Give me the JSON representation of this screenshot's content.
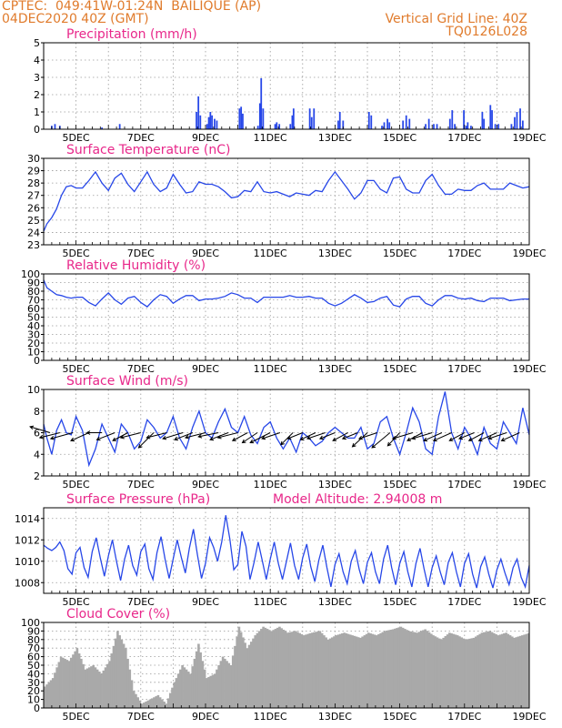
{
  "header": {
    "left_line1": "CPTEC:  049:41W-01:24N  BAILIQUE (AP)",
    "left_line2": "04DEC2020 40Z (GMT)",
    "right_line1": "Vertical Grid Line: 40Z",
    "right_line2": "TQ0126L028"
  },
  "colors": {
    "header": "#e07b2c",
    "title": "#e8278a",
    "series": "#2747e8",
    "cloud": "#a9a9a9",
    "grid": "#9a9a9a"
  },
  "x_ticks": [
    "5DEC",
    "7DEC",
    "9DEC",
    "11DEC",
    "13DEC",
    "15DEC",
    "17DEC",
    "19DEC"
  ],
  "chart_data": [
    {
      "id": "precip",
      "type": "bar",
      "title": "Precipitation (mm/h)",
      "xlim": [
        4.0,
        19.0
      ],
      "ylim": [
        0,
        5
      ],
      "yticks": [
        0,
        1,
        2,
        3,
        4,
        5
      ],
      "bar_width": 0.05,
      "x": [
        4.25,
        4.35,
        4.5,
        5.8,
        6.35,
        8.72,
        8.78,
        8.84,
        9.05,
        9.1,
        9.15,
        9.2,
        9.28,
        9.35,
        10.05,
        10.1,
        10.15,
        10.62,
        10.68,
        10.72,
        10.78,
        11.15,
        11.2,
        11.28,
        11.62,
        11.68,
        11.72,
        12.22,
        12.28,
        12.35,
        13.1,
        13.15,
        13.25,
        14.05,
        14.12,
        14.45,
        14.52,
        14.62,
        14.68,
        15.1,
        15.2,
        15.3,
        15.8,
        15.9,
        16.05,
        16.15,
        16.55,
        16.62,
        16.7,
        16.98,
        17.05,
        17.1,
        17.2,
        17.55,
        17.6,
        17.8,
        17.85,
        17.95,
        18.05,
        18.45,
        18.55,
        18.62,
        18.72,
        18.8
      ],
      "values": [
        0.2,
        0.3,
        0.2,
        0.1,
        0.3,
        1.0,
        1.9,
        0.8,
        0.3,
        0.7,
        1.0,
        0.8,
        0.6,
        0.5,
        1.2,
        1.3,
        0.9,
        0.2,
        1.5,
        2.95,
        1.2,
        0.3,
        0.4,
        0.3,
        0.3,
        0.8,
        1.2,
        1.2,
        0.7,
        1.2,
        0.5,
        1.0,
        0.5,
        1.0,
        0.8,
        0.2,
        0.4,
        0.6,
        0.4,
        0.5,
        0.8,
        0.6,
        0.3,
        0.6,
        0.3,
        0.3,
        0.6,
        1.1,
        0.3,
        1.1,
        0.2,
        0.4,
        0.2,
        1.0,
        0.6,
        1.4,
        1.1,
        0.3,
        0.3,
        0.3,
        0.7,
        1.0,
        1.2,
        0.5
      ]
    },
    {
      "id": "temp",
      "type": "line",
      "title": "Surface Temperature (nC)",
      "xlim": [
        4.0,
        19.0
      ],
      "ylim": [
        23,
        30
      ],
      "yticks": [
        23,
        24,
        25,
        26,
        27,
        28,
        29,
        30
      ],
      "x": [
        4.0,
        4.1,
        4.25,
        4.4,
        4.55,
        4.7,
        4.85,
        5.0,
        5.2,
        5.4,
        5.6,
        5.8,
        6.0,
        6.2,
        6.4,
        6.6,
        6.8,
        7.0,
        7.2,
        7.4,
        7.6,
        7.8,
        8.0,
        8.2,
        8.4,
        8.6,
        8.8,
        9.0,
        9.2,
        9.4,
        9.6,
        9.8,
        10.0,
        10.2,
        10.4,
        10.6,
        10.8,
        11.0,
        11.2,
        11.4,
        11.6,
        11.8,
        12.0,
        12.2,
        12.4,
        12.6,
        12.8,
        13.0,
        13.2,
        13.4,
        13.6,
        13.8,
        14.0,
        14.2,
        14.4,
        14.6,
        14.8,
        15.0,
        15.2,
        15.4,
        15.6,
        15.8,
        16.0,
        16.2,
        16.4,
        16.6,
        16.8,
        17.0,
        17.2,
        17.4,
        17.6,
        17.8,
        18.0,
        18.2,
        18.4,
        18.6,
        18.8,
        19.0
      ],
      "values": [
        24.1,
        24.7,
        25.2,
        25.9,
        27.0,
        27.7,
        27.8,
        27.6,
        27.6,
        28.2,
        28.9,
        28.0,
        27.4,
        28.4,
        28.8,
        27.9,
        27.3,
        28.1,
        28.9,
        27.9,
        27.3,
        27.6,
        28.7,
        27.9,
        27.2,
        27.3,
        28.1,
        27.9,
        27.9,
        27.7,
        27.3,
        26.8,
        26.9,
        27.4,
        27.3,
        28.1,
        27.3,
        27.2,
        27.3,
        27.1,
        26.9,
        27.2,
        27.1,
        27.0,
        27.4,
        27.3,
        28.2,
        28.9,
        28.2,
        27.5,
        26.7,
        27.2,
        28.2,
        28.2,
        27.5,
        27.2,
        28.4,
        28.5,
        27.5,
        27.2,
        27.2,
        28.2,
        28.7,
        27.8,
        27.1,
        27.1,
        27.5,
        27.4,
        27.4,
        27.8,
        28.0,
        27.5,
        27.5,
        27.5,
        28.0,
        27.8,
        27.6,
        27.7
      ]
    },
    {
      "id": "rh",
      "type": "line",
      "title": "Relative Humidity (%)",
      "xlim": [
        4.0,
        19.0
      ],
      "ylim": [
        0,
        100
      ],
      "yticks": [
        0,
        10,
        20,
        30,
        40,
        50,
        60,
        70,
        80,
        90,
        100
      ],
      "x": [
        4.0,
        4.1,
        4.25,
        4.4,
        4.55,
        4.7,
        4.85,
        5.0,
        5.2,
        5.4,
        5.6,
        5.8,
        6.0,
        6.2,
        6.4,
        6.6,
        6.8,
        7.0,
        7.2,
        7.4,
        7.6,
        7.8,
        8.0,
        8.2,
        8.4,
        8.6,
        8.8,
        9.0,
        9.2,
        9.4,
        9.6,
        9.8,
        10.0,
        10.2,
        10.4,
        10.6,
        10.8,
        11.0,
        11.2,
        11.4,
        11.6,
        11.8,
        12.0,
        12.2,
        12.4,
        12.6,
        12.8,
        13.0,
        13.2,
        13.4,
        13.6,
        13.8,
        14.0,
        14.2,
        14.4,
        14.6,
        14.8,
        15.0,
        15.2,
        15.4,
        15.6,
        15.8,
        16.0,
        16.2,
        16.4,
        16.6,
        16.8,
        17.0,
        17.2,
        17.4,
        17.6,
        17.8,
        18.0,
        18.2,
        18.4,
        18.6,
        18.8,
        19.0
      ],
      "values": [
        93,
        84,
        80,
        76,
        75,
        73,
        72,
        73,
        73,
        67,
        63,
        71,
        78,
        70,
        65,
        72,
        74,
        67,
        62,
        70,
        76,
        74,
        66,
        71,
        75,
        75,
        69,
        71,
        71,
        72,
        74,
        78,
        76,
        72,
        72,
        67,
        73,
        73,
        73,
        73,
        75,
        73,
        73,
        74,
        72,
        72,
        66,
        63,
        66,
        71,
        76,
        72,
        67,
        68,
        72,
        74,
        64,
        62,
        71,
        74,
        74,
        66,
        63,
        70,
        75,
        75,
        72,
        71,
        72,
        69,
        68,
        72,
        72,
        72,
        69,
        70,
        71,
        71
      ]
    },
    {
      "id": "wind",
      "type": "line",
      "title": "Surface Wind (m/s)",
      "xlim": [
        4.0,
        19.0
      ],
      "ylim": [
        2,
        10
      ],
      "yticks": [
        2,
        4,
        6,
        8,
        10
      ],
      "x": [
        4.0,
        4.1,
        4.25,
        4.4,
        4.55,
        4.7,
        4.85,
        5.0,
        5.2,
        5.4,
        5.6,
        5.8,
        6.0,
        6.2,
        6.4,
        6.6,
        6.8,
        7.0,
        7.2,
        7.4,
        7.6,
        7.8,
        8.0,
        8.2,
        8.4,
        8.6,
        8.8,
        9.0,
        9.2,
        9.4,
        9.6,
        9.8,
        10.0,
        10.2,
        10.4,
        10.6,
        10.8,
        11.0,
        11.2,
        11.4,
        11.6,
        11.8,
        12.0,
        12.2,
        12.4,
        12.6,
        12.8,
        13.0,
        13.2,
        13.4,
        13.6,
        13.8,
        14.0,
        14.2,
        14.4,
        14.6,
        14.8,
        15.0,
        15.2,
        15.4,
        15.6,
        15.8,
        16.0,
        16.2,
        16.4,
        16.6,
        16.8,
        17.0,
        17.2,
        17.4,
        17.6,
        17.8,
        18.0,
        18.2,
        18.4,
        18.6,
        18.8,
        19.0
      ],
      "values": [
        6.8,
        5.5,
        4.0,
        6.2,
        7.2,
        6.0,
        5.8,
        7.5,
        6.2,
        3.0,
        4.5,
        6.8,
        5.5,
        4.2,
        6.8,
        6.0,
        4.5,
        5.2,
        7.2,
        6.5,
        5.5,
        6.0,
        7.5,
        5.5,
        4.5,
        6.5,
        8.0,
        6.0,
        5.5,
        7.0,
        8.2,
        6.5,
        6.0,
        7.5,
        5.8,
        5.0,
        6.5,
        7.0,
        5.5,
        4.5,
        5.5,
        4.2,
        6.0,
        5.5,
        4.8,
        5.2,
        6.0,
        6.5,
        6.0,
        5.5,
        5.5,
        6.5,
        4.5,
        5.0,
        7.0,
        7.5,
        5.5,
        4.0,
        6.0,
        8.3,
        7.0,
        4.5,
        4.0,
        7.5,
        9.8,
        6.0,
        4.5,
        6.5,
        5.5,
        4.0,
        6.5,
        5.0,
        4.5,
        7.0,
        6.0,
        5.0,
        8.3,
        5.8
      ]
    },
    {
      "id": "pres",
      "type": "line",
      "title": "Surface Pressure (hPa)",
      "annotation": "Model Altitude: 2.94008 m",
      "xlim": [
        4.0,
        19.0
      ],
      "ylim": [
        1007,
        1015
      ],
      "yticks": [
        1008,
        1010,
        1012,
        1014
      ],
      "x": [
        4.0,
        4.125,
        4.25,
        4.375,
        4.5,
        4.625,
        4.75,
        4.875,
        5.0,
        5.125,
        5.25,
        5.375,
        5.5,
        5.625,
        5.75,
        5.875,
        6.0,
        6.125,
        6.25,
        6.375,
        6.5,
        6.625,
        6.75,
        6.875,
        7.0,
        7.125,
        7.25,
        7.375,
        7.5,
        7.625,
        7.75,
        7.875,
        8.0,
        8.125,
        8.25,
        8.375,
        8.5,
        8.625,
        8.75,
        8.875,
        9.0,
        9.125,
        9.25,
        9.375,
        9.5,
        9.625,
        9.75,
        9.875,
        10.0,
        10.125,
        10.25,
        10.375,
        10.5,
        10.625,
        10.75,
        10.875,
        11.0,
        11.125,
        11.25,
        11.375,
        11.5,
        11.625,
        11.75,
        11.875,
        12.0,
        12.125,
        12.25,
        12.375,
        12.5,
        12.625,
        12.75,
        12.875,
        13.0,
        13.125,
        13.25,
        13.375,
        13.5,
        13.625,
        13.75,
        13.875,
        14.0,
        14.125,
        14.25,
        14.375,
        14.5,
        14.625,
        14.75,
        14.875,
        15.0,
        15.125,
        15.25,
        15.375,
        15.5,
        15.625,
        15.75,
        15.875,
        16.0,
        16.125,
        16.25,
        16.375,
        16.5,
        16.625,
        16.75,
        16.875,
        17.0,
        17.125,
        17.25,
        17.375,
        17.5,
        17.625,
        17.75,
        17.875,
        18.0,
        18.125,
        18.25,
        18.375,
        18.5,
        18.625,
        18.75,
        18.875,
        19.0
      ],
      "values": [
        1011.5,
        1011.2,
        1011.0,
        1011.3,
        1011.8,
        1011.0,
        1009.3,
        1008.8,
        1010.8,
        1011.3,
        1009.4,
        1008.5,
        1010.9,
        1012.2,
        1010.3,
        1008.6,
        1010.5,
        1012.0,
        1010.0,
        1008.2,
        1010.2,
        1011.5,
        1009.6,
        1008.7,
        1010.9,
        1011.6,
        1009.3,
        1008.3,
        1010.8,
        1012.3,
        1010.2,
        1008.4,
        1010.2,
        1012.0,
        1010.4,
        1008.9,
        1011.2,
        1013.0,
        1010.6,
        1008.4,
        1009.8,
        1012.2,
        1011.3,
        1010.0,
        1011.8,
        1014.3,
        1012.1,
        1009.2,
        1009.7,
        1012.8,
        1011.4,
        1008.3,
        1009.9,
        1011.8,
        1010.1,
        1008.3,
        1010.2,
        1011.8,
        1009.8,
        1008.3,
        1010.0,
        1011.7,
        1009.6,
        1008.3,
        1010.3,
        1011.6,
        1009.5,
        1008.1,
        1010.1,
        1011.5,
        1009.4,
        1007.6,
        1009.7,
        1010.7,
        1009.0,
        1007.9,
        1010.0,
        1011.0,
        1009.2,
        1007.9,
        1009.9,
        1010.8,
        1009.0,
        1007.9,
        1010.2,
        1011.5,
        1009.4,
        1007.8,
        1009.8,
        1010.9,
        1009.0,
        1007.6,
        1009.8,
        1011.2,
        1009.3,
        1007.6,
        1009.4,
        1010.5,
        1009.0,
        1007.8,
        1009.9,
        1010.8,
        1009.0,
        1007.6,
        1009.8,
        1010.7,
        1008.8,
        1007.5,
        1009.5,
        1010.4,
        1008.8,
        1007.5,
        1009.2,
        1010.2,
        1008.9,
        1007.8,
        1009.4,
        1010.2,
        1008.5,
        1007.6,
        1009.6
      ]
    },
    {
      "id": "cloud",
      "type": "area",
      "title": "Cloud Cover (%)",
      "xlim": [
        4.0,
        19.0
      ],
      "ylim": [
        0,
        100
      ],
      "yticks": [
        0,
        10,
        20,
        30,
        40,
        50,
        60,
        70,
        80,
        90,
        100
      ],
      "x": [
        4.0,
        4.25,
        4.5,
        4.75,
        5.0,
        5.25,
        5.5,
        5.75,
        6.0,
        6.25,
        6.5,
        6.75,
        7.0,
        7.25,
        7.5,
        7.75,
        8.0,
        8.25,
        8.5,
        8.75,
        9.0,
        9.25,
        9.5,
        9.75,
        10.0,
        10.25,
        10.5,
        10.75,
        11.0,
        11.25,
        11.5,
        11.75,
        12.0,
        12.25,
        12.5,
        12.75,
        13.0,
        13.25,
        13.5,
        13.75,
        14.0,
        14.25,
        14.5,
        14.75,
        15.0,
        15.25,
        15.5,
        15.75,
        16.0,
        16.25,
        16.5,
        16.75,
        17.0,
        17.25,
        17.5,
        17.75,
        18.0,
        18.25,
        18.5,
        18.75,
        19.0
      ],
      "values": [
        25,
        35,
        60,
        55,
        70,
        45,
        50,
        40,
        55,
        90,
        70,
        20,
        5,
        10,
        15,
        5,
        30,
        50,
        40,
        75,
        35,
        40,
        60,
        50,
        95,
        70,
        85,
        95,
        90,
        95,
        88,
        90,
        85,
        88,
        90,
        80,
        85,
        88,
        85,
        82,
        88,
        85,
        90,
        92,
        95,
        90,
        88,
        92,
        85,
        80,
        88,
        85,
        80,
        82,
        88,
        90,
        85,
        88,
        82,
        85,
        88
      ]
    }
  ],
  "wind_vectors": {
    "x": [
      4.2,
      4.5,
      4.9,
      5.4,
      5.8,
      6.2,
      6.6,
      7.0,
      7.4,
      7.8,
      8.3,
      8.6,
      9.0,
      9.4,
      9.7,
      10.0,
      10.3,
      10.6,
      11.0,
      11.3,
      11.7,
      12.0,
      12.4,
      12.7,
      13.0,
      13.4,
      13.7,
      14.0,
      14.3,
      14.7,
      15.0,
      15.4,
      15.7,
      16.0,
      16.3,
      16.6,
      17.0,
      17.3,
      17.6,
      18.0,
      18.3,
      18.7
    ],
    "u": [
      -2.0,
      -2.0,
      -2.2,
      -1.8,
      -1.5,
      -1.8,
      -1.5,
      -2.0,
      -1.5,
      -2.0,
      -2.0,
      -1.8,
      -2.0,
      -2.0,
      -1.8,
      -2.0,
      -1.5,
      -1.5,
      -2.0,
      -1.8,
      -1.2,
      -1.5,
      -1.5,
      -1.8,
      -1.5,
      -1.5,
      -1.5,
      -1.5,
      -1.8,
      -1.8,
      -1.2,
      -2.0,
      -1.5,
      -2.0,
      -1.8,
      -1.8,
      -1.5,
      -1.5,
      -1.5,
      -1.8,
      -1.8,
      -1.8
    ],
    "v": [
      0.6,
      -0.5,
      -0.6,
      -0.8,
      0.0,
      -0.7,
      -0.8,
      -0.5,
      -1.5,
      -0.5,
      -0.6,
      -0.7,
      -0.5,
      -0.4,
      -0.7,
      -0.5,
      -0.8,
      -1.0,
      -1.0,
      -0.6,
      -1.2,
      -0.6,
      -0.7,
      -0.6,
      -0.6,
      -0.8,
      -0.6,
      -1.4,
      -0.6,
      -1.5,
      -1.3,
      -0.6,
      -0.8,
      -0.6,
      -0.8,
      -0.8,
      -0.8,
      -0.6,
      -0.8,
      -0.8,
      -0.6,
      -0.8
    ]
  }
}
